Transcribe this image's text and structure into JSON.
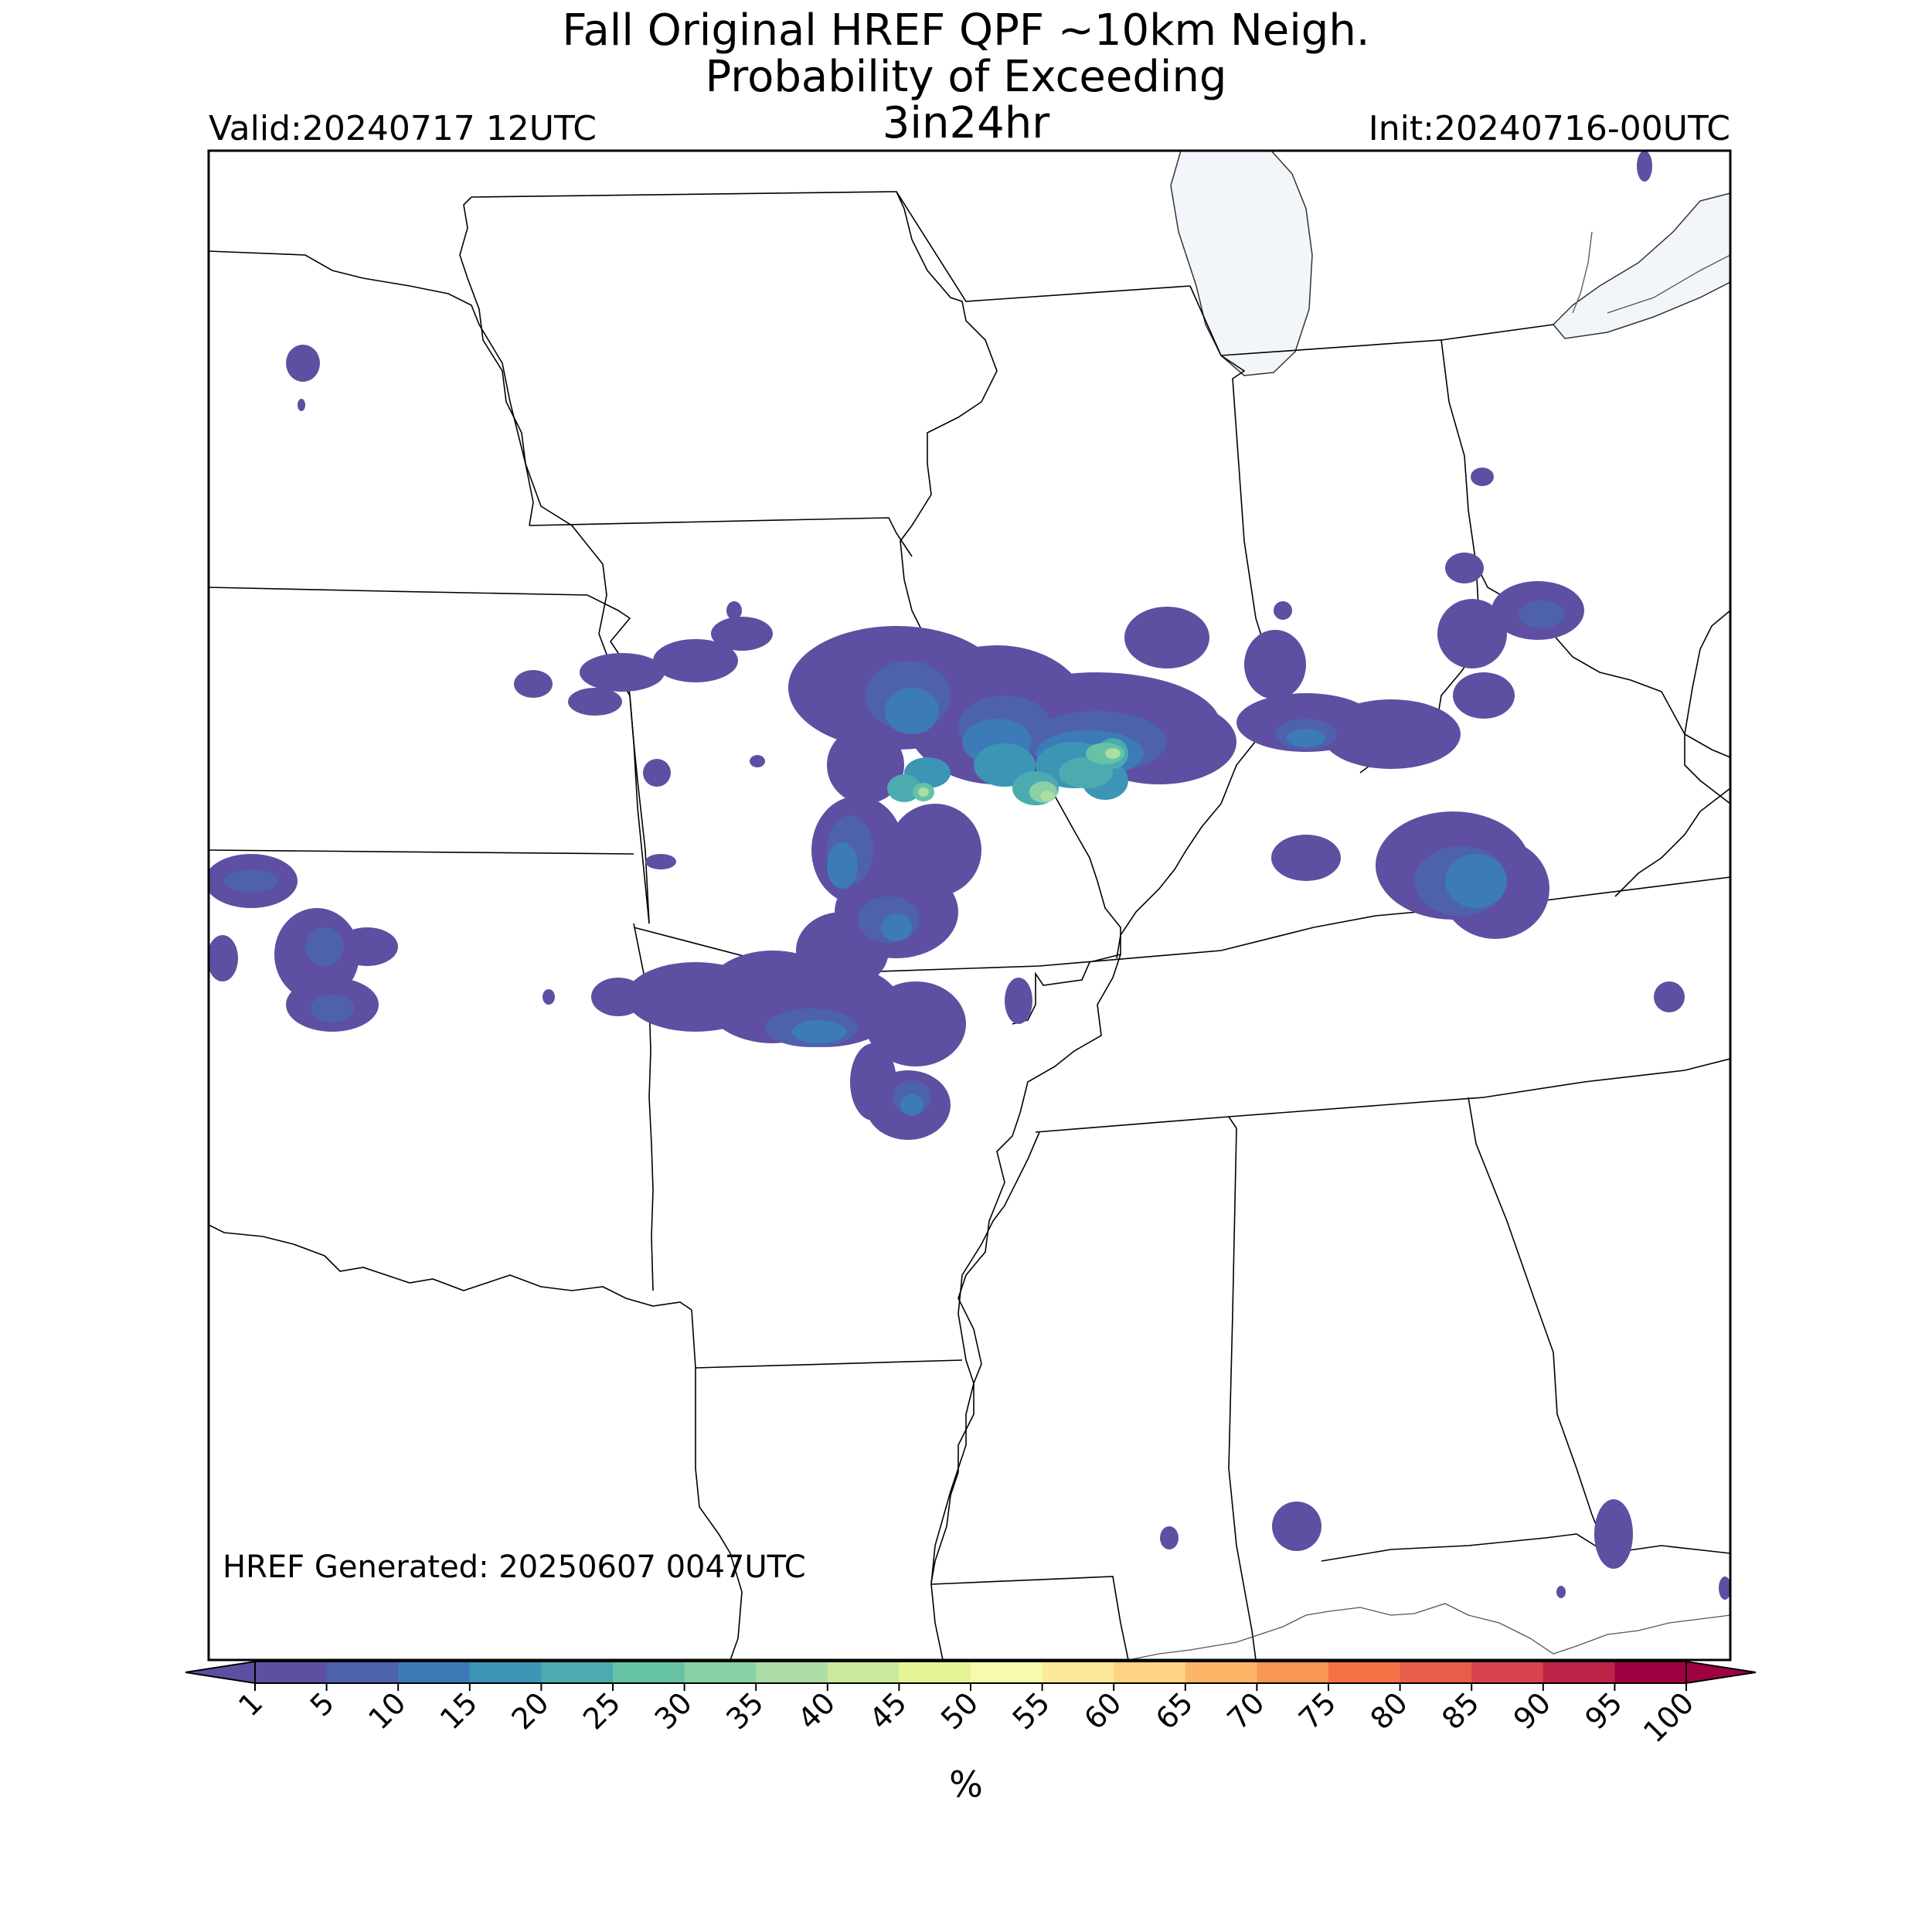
{
  "header": {
    "title_line1": "Fall Original HREF QPF ~10km Neigh.",
    "title_line2": "Probability of Exceeding",
    "title_line3": "3in24hr",
    "valid": "Valid:20240717 12UTC",
    "init": "Init:20240716-00UTC"
  },
  "footer": {
    "generated": "HREF Generated: 20250607 0047UTC"
  },
  "colorbar": {
    "levels": [
      "1",
      "5",
      "10",
      "15",
      "20",
      "25",
      "30",
      "35",
      "40",
      "45",
      "50",
      "55",
      "60",
      "65",
      "70",
      "75",
      "80",
      "85",
      "90",
      "95",
      "100"
    ],
    "colors": [
      "#5e4fa2",
      "#4e61ad",
      "#3d7ab8",
      "#3c95b5",
      "#4cabaf",
      "#66c2a5",
      "#89d1a4",
      "#abdda4",
      "#cbe99e",
      "#e6f598",
      "#f7faad",
      "#fee99a",
      "#fed482",
      "#fdb567",
      "#f99555",
      "#f47245",
      "#e65d48",
      "#d7444d",
      "#bc2347",
      "#9e0142"
    ],
    "unit": "%"
  },
  "map_colors": {
    "lake": "#f2f6fb",
    "border": "#000000",
    "coast": "#333333"
  }
}
